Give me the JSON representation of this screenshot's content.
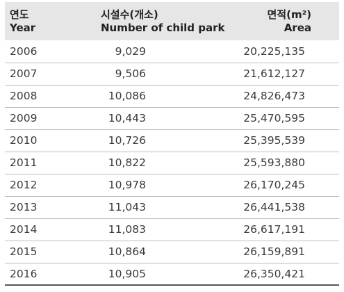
{
  "header": {
    "year_ko": "연도",
    "year_en": "Year",
    "count_ko": "시설수(개소)",
    "count_en": "Number of child park",
    "area_ko": "면적(m²)",
    "area_en": "Area"
  },
  "rows": [
    {
      "year": "2006",
      "count": "9,029",
      "area": "20,225,135"
    },
    {
      "year": "2007",
      "count": "9,506",
      "area": "21,612,127"
    },
    {
      "year": "2008",
      "count": "10,086",
      "area": "24,826,473"
    },
    {
      "year": "2009",
      "count": "10,443",
      "area": "25,470,595"
    },
    {
      "year": "2010",
      "count": "10,726",
      "area": "25,395,539"
    },
    {
      "year": "2011",
      "count": "10,822",
      "area": "25,593,880"
    },
    {
      "year": "2012",
      "count": "10,978",
      "area": "26,170,245"
    },
    {
      "year": "2013",
      "count": "11,043",
      "area": "26,441,538"
    },
    {
      "year": "2014",
      "count": "11,083",
      "area": "26,617,191"
    },
    {
      "year": "2015",
      "count": "10,864",
      "area": "26,159,891"
    },
    {
      "year": "2016",
      "count": "10,905",
      "area": "26,350,421"
    }
  ]
}
